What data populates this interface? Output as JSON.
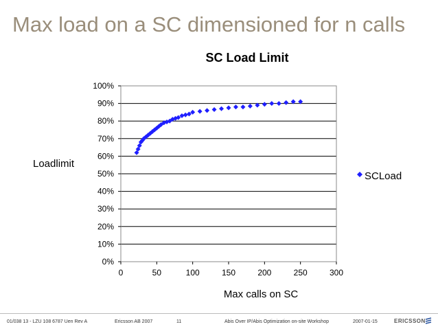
{
  "slide": {
    "title": "Max load on a SC dimensioned for n calls"
  },
  "colors": {
    "title": "#9a8e7b",
    "series": "#1f1fff",
    "grid": "#000000",
    "plot_border": "#888888"
  },
  "chart_data": {
    "type": "scatter",
    "title": "SC Load Limit",
    "xlabel": "Max calls on SC",
    "ylabel": "Loadlimit",
    "xlim": [
      0,
      300
    ],
    "ylim": [
      0,
      100
    ],
    "x_ticks": [
      "0",
      "50",
      "100",
      "150",
      "200",
      "250",
      "300"
    ],
    "y_ticks": [
      "0%",
      "10%",
      "20%",
      "30%",
      "40%",
      "50%",
      "60%",
      "70%",
      "80%",
      "90%",
      "100%"
    ],
    "grid": true,
    "legend_position": "right",
    "series": [
      {
        "name": "SCLoad",
        "marker": "diamond",
        "x": [
          22,
          24,
          26,
          28,
          30,
          32,
          35,
          38,
          41,
          44,
          47,
          50,
          53,
          56,
          60,
          64,
          68,
          72,
          76,
          80,
          85,
          90,
          95,
          100,
          110,
          120,
          130,
          140,
          150,
          160,
          170,
          180,
          190,
          200,
          210,
          220,
          230,
          240,
          250
        ],
        "y": [
          62,
          64,
          66,
          68,
          69,
          70,
          71,
          72,
          73,
          74,
          75,
          76,
          77,
          78,
          79,
          79.5,
          80,
          81,
          81.5,
          82,
          83,
          83.5,
          84,
          85,
          85.5,
          86,
          86.5,
          87,
          87.5,
          88,
          88,
          88.5,
          89,
          89.5,
          90,
          90,
          90.5,
          91,
          91
        ]
      }
    ]
  },
  "footer": {
    "doc_id": "01/038 13 - LZU 108 6787 Uen  Rev A",
    "company": "Ericsson AB 2007",
    "page": "11",
    "workshop": "Abis Over IP/Abis Optimization on-site Workshop",
    "date": "2007-01-15",
    "logo_text": "ERICSSON",
    "logo_icon": "ericsson-logo-icon"
  }
}
